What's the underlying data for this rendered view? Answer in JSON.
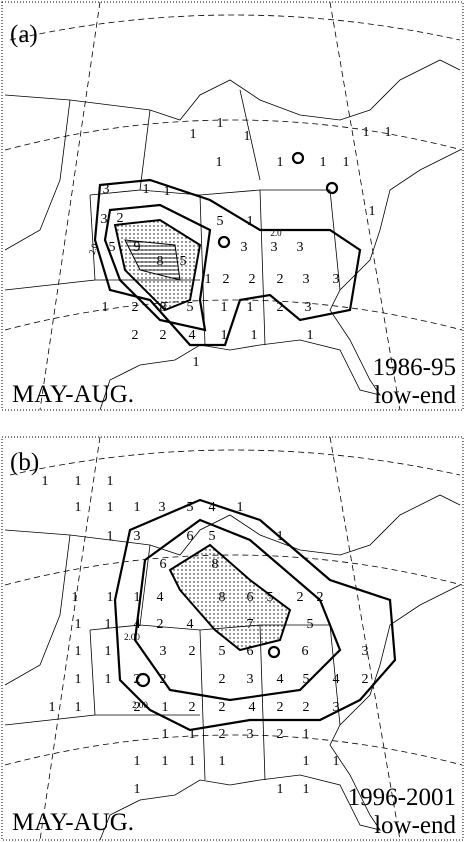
{
  "panels": [
    {
      "label": "(a)",
      "season": "MAY-AUG.",
      "period": "1986-95",
      "note": "low-end",
      "values": [
        1,
        1,
        1,
        1,
        1,
        1,
        1,
        1,
        1,
        1,
        3,
        1,
        1,
        2,
        3,
        5,
        9,
        8,
        5,
        3,
        3,
        3,
        2,
        1,
        2,
        2,
        3,
        3,
        1,
        2,
        8,
        5,
        1,
        1,
        2,
        3,
        2,
        2,
        4,
        1,
        1,
        1,
        1,
        5,
        1
      ],
      "contour_labels": [
        "2.0",
        "2.0"
      ]
    },
    {
      "label": "(b)",
      "season": "MAY-AUG.",
      "period": "1996-2001",
      "note": "low-end",
      "values": [
        1,
        1,
        1,
        1,
        1,
        1,
        3,
        5,
        4,
        1,
        1,
        3,
        6,
        5,
        1,
        6,
        8,
        1,
        1,
        1,
        4,
        8,
        6,
        5,
        2,
        2,
        1,
        1,
        4,
        2,
        4,
        7,
        5,
        1,
        1,
        3,
        2,
        5,
        6,
        6,
        3,
        1,
        1,
        2,
        2,
        2,
        3,
        4,
        5,
        4,
        2,
        1,
        1,
        2,
        1,
        2,
        2,
        4,
        2,
        2,
        3,
        1,
        1,
        2,
        3,
        2,
        1,
        1,
        1,
        1,
        1,
        1,
        1,
        1,
        1,
        1
      ],
      "contour_labels": [
        "2.00",
        "2.00"
      ]
    }
  ]
}
